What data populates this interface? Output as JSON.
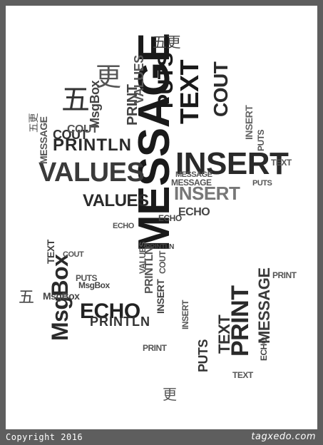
{
  "footer": {
    "copyright": "Copyright 2016",
    "brand": "tagxedo.com"
  },
  "cloud": {
    "words": [
      "MESSAGE",
      "INSERT",
      "VALUES",
      "PRINTLN",
      "TEXT",
      "COUT",
      "PUTS",
      "MsgBox",
      "ECHO",
      "PRINT",
      "五更",
      "五",
      "更",
      "PRINTLN",
      "MESSAGE",
      "VALUES",
      "INSERT",
      "ECHO",
      "COUT",
      "TEXT",
      "PRINT",
      "PUTS",
      "MsgBox",
      "MESSAGE",
      "COUT",
      "ECHO",
      "MsgBox",
      "VALUES",
      "PRINTLN",
      "INSERT",
      "TEXT",
      "PUTS",
      "PRINT",
      "MESSAGE",
      "TEXT",
      "INSERT",
      "PUTS",
      "ECHO",
      "COUT",
      "MsgBox",
      "PRINTLN",
      "VALUES",
      "MESSAGE",
      "PRINT",
      "TEXT",
      "INSERT",
      "ECHO",
      "PUTS",
      "COUT",
      "更",
      "五更",
      "五"
    ]
  }
}
